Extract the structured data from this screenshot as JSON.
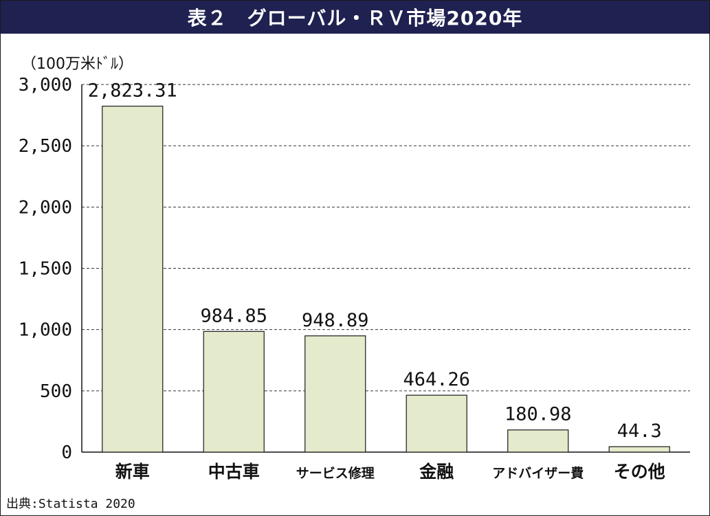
{
  "header": {
    "title": "表２　グローバル・ＲＶ市場2020年",
    "background": "#1f2150"
  },
  "unit_label": "（100万米ﾄﾞﾙ）",
  "source": "出典:Statista 2020",
  "colors": {
    "bar_fill": "#e4ebcc",
    "bar_stroke": "#2a2a2a",
    "grid": "#333333"
  },
  "chart_data": {
    "type": "bar",
    "categories": [
      "新車",
      "中古車",
      "サービス修理",
      "金融",
      "アドバイザー費",
      "その他"
    ],
    "values": [
      2823.31,
      984.85,
      948.89,
      464.26,
      180.98,
      44.3
    ],
    "value_labels": [
      "2,823.31",
      "984.85",
      "948.89",
      "464.26",
      "180.98",
      "44.3"
    ],
    "title": "表２　グローバル・ＲＶ市場2020年",
    "ylabel": "（100万米ﾄﾞﾙ）",
    "xlabel": "",
    "ylim": [
      0,
      3000
    ],
    "yticks": [
      0,
      500,
      1000,
      1500,
      2000,
      2500,
      3000
    ],
    "ytick_labels": [
      "0",
      "500",
      "1,000",
      "1,500",
      "2,000",
      "2,500",
      "3,000"
    ],
    "grid": "horizontal dashed",
    "legend": "none"
  }
}
